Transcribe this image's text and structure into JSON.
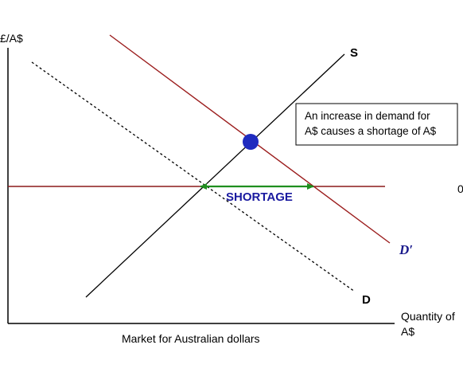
{
  "diagram": {
    "y_axis_label": "£/A$",
    "x_axis_label_line1": "Quantity of",
    "x_axis_label_line2": "A$",
    "caption": "Market for Australian dollars",
    "supply_label": "S",
    "demand_label": "D",
    "new_demand_label": "D′",
    "shortage_label": "SHORTAGE",
    "callout_line1": "An increase in demand for",
    "callout_line2": "A$ causes a shortage of A$",
    "cutoff_tick_label": "0",
    "colors": {
      "axis": "#000000",
      "supply": "#000000",
      "demand": "#000000",
      "new_demand": "#9b1c1c",
      "price_line": "#8b1a1a",
      "shortage_arrow": "#1f8f1f",
      "shortage_text": "#1a1aa0",
      "new_demand_label": "#1a1a8c",
      "equilibrium_point": "#1f2bbf"
    }
  }
}
